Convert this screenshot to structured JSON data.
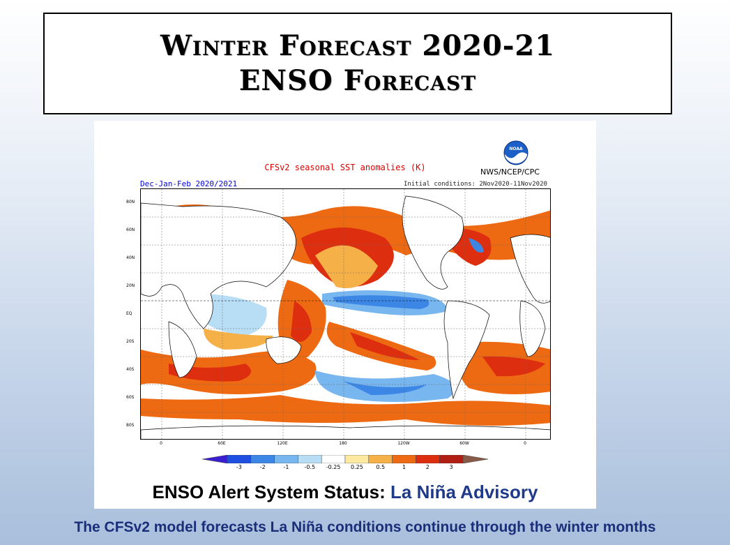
{
  "slide": {
    "title_line1": "Winter Forecast 2020-21",
    "title_line2": "ENSO Forecast",
    "caption": "The CFSv2 model forecasts La Niña conditions continue through the winter months"
  },
  "figure": {
    "title": "CFSv2 seasonal SST anomalies (K)",
    "agency": "NWS/NCEP/CPC",
    "season": "Dec-Jan-Feb 2020/2021",
    "initial_conditions": "Initial conditions: 2Nov2020-11Nov2020",
    "logo_text": "NOAA",
    "lat_labels": [
      "80N",
      "60N",
      "40N",
      "20N",
      "EQ",
      "20S",
      "40S",
      "60S",
      "80S"
    ],
    "lon_labels": [
      "0",
      "60E",
      "120E",
      "180",
      "120W",
      "60W",
      "0"
    ],
    "colorbar_labels": [
      "-3",
      "-2",
      "-1",
      "-0.5",
      "-0.25",
      "0.25",
      "0.5",
      "1",
      "2",
      "3"
    ],
    "colorbar_colors": [
      "#3a1fd1",
      "#1f4fe0",
      "#3c86e6",
      "#78b6f0",
      "#b8def6",
      "#ffffff",
      "#fde9a0",
      "#f6b048",
      "#ee6a12",
      "#de2e10",
      "#b01e14",
      "#8a5a48"
    ]
  },
  "alert": {
    "label": "ENSO Alert System Status:",
    "status": "La Niña Advisory"
  }
}
